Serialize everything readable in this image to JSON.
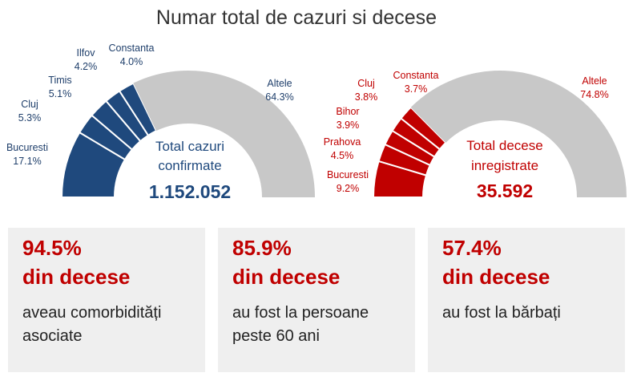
{
  "title": "Numar total de cazuri si decese",
  "colors": {
    "cases": "#1f497d",
    "deaths": "#c00000",
    "other": "#c8c8c8",
    "title": "#333333"
  },
  "chart_data": [
    {
      "type": "pie",
      "slices": [
        {
          "label": "Bucuresti",
          "value": 17.1,
          "display": "17.1%"
        },
        {
          "label": "Cluj",
          "value": 5.3,
          "display": "5.3%"
        },
        {
          "label": "Timis",
          "value": 5.1,
          "display": "5.1%"
        },
        {
          "label": "Ilfov",
          "value": 4.2,
          "display": "4.2%"
        },
        {
          "label": "Constanta",
          "value": 4.0,
          "display": "4.0%"
        },
        {
          "label": "Altele",
          "value": 64.3,
          "display": "64.3%"
        }
      ],
      "center_text": [
        "Total cazuri",
        "confirmate"
      ],
      "total": "1.152.052"
    },
    {
      "type": "pie",
      "slices": [
        {
          "label": "Bucuresti",
          "value": 9.2,
          "display": "9.2%"
        },
        {
          "label": "Prahova",
          "value": 4.5,
          "display": "4.5%"
        },
        {
          "label": "Bihor",
          "value": 3.9,
          "display": "3.9%"
        },
        {
          "label": "Cluj",
          "value": 3.8,
          "display": "3.8%"
        },
        {
          "label": "Constanta",
          "value": 3.7,
          "display": "3.7%"
        },
        {
          "label": "Altele",
          "value": 74.8,
          "display": "74.8%"
        }
      ],
      "center_text": [
        "Total decese",
        "inregistrate"
      ],
      "total": "35.592"
    }
  ],
  "cards": [
    {
      "pct": "94.5%",
      "headline": "din decese",
      "desc": "aveau comorbidități asociate"
    },
    {
      "pct": "85.9%",
      "headline": "din decese",
      "desc": "au fost la persoane peste 60 ani"
    },
    {
      "pct": "57.4%",
      "headline": "din decese",
      "desc": "au fost la bărbați"
    }
  ]
}
